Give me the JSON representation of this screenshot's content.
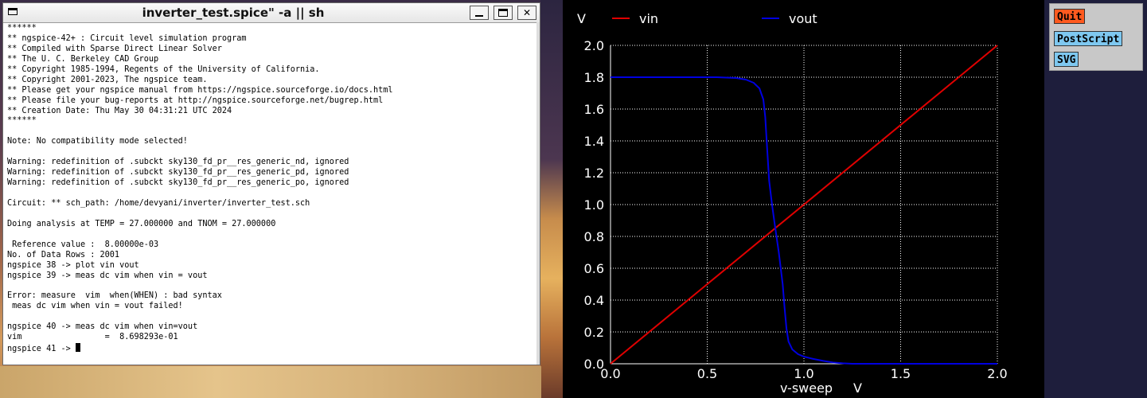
{
  "terminal": {
    "title": "inverter_test.spice\" -a || sh",
    "lines": [
      "******",
      "** ngspice-42+ : Circuit level simulation program",
      "** Compiled with Sparse Direct Linear Solver",
      "** The U. C. Berkeley CAD Group",
      "** Copyright 1985-1994, Regents of the University of California.",
      "** Copyright 2001-2023, The ngspice team.",
      "** Please get your ngspice manual from https://ngspice.sourceforge.io/docs.html",
      "** Please file your bug-reports at http://ngspice.sourceforge.net/bugrep.html",
      "** Creation Date: Thu May 30 04:31:21 UTC 2024",
      "******",
      "",
      "Note: No compatibility mode selected!",
      "",
      "Warning: redefinition of .subckt sky130_fd_pr__res_generic_nd, ignored",
      "Warning: redefinition of .subckt sky130_fd_pr__res_generic_pd, ignored",
      "Warning: redefinition of .subckt sky130_fd_pr__res_generic_po, ignored",
      "",
      "Circuit: ** sch_path: /home/devyani/inverter/inverter_test.sch",
      "",
      "Doing analysis at TEMP = 27.000000 and TNOM = 27.000000",
      "",
      " Reference value :  8.00000e-03",
      "No. of Data Rows : 2001",
      "ngspice 38 -> plot vin vout",
      "ngspice 39 -> meas dc vim when vin = vout",
      "",
      "Error: measure  vim  when(WHEN) : bad syntax",
      " meas dc vim when vin = vout failed!",
      "",
      "ngspice 40 -> meas dc vim when vin=vout",
      "vim                 =  8.698293e-01",
      "ngspice 41 -> "
    ]
  },
  "buttons": {
    "quit": "Quit",
    "postscript": "PostScript",
    "svg": "SVG"
  },
  "chart_data": {
    "type": "line",
    "title": "",
    "xlabel": "v-sweep",
    "xunit": "V",
    "yunit": "V",
    "xlim": [
      0.0,
      2.0
    ],
    "ylim": [
      0.0,
      2.0
    ],
    "xticks": [
      "0.0",
      "0.5",
      "1.0",
      "1.5",
      "2.0"
    ],
    "yticks": [
      "0.0",
      "0.2",
      "0.4",
      "0.6",
      "0.8",
      "1.0",
      "1.2",
      "1.4",
      "1.6",
      "1.8",
      "2.0"
    ],
    "grid": true,
    "legend_placement": "top",
    "series": [
      {
        "name": "vin",
        "color": "#e00000",
        "points": [
          [
            0.0,
            0.0
          ],
          [
            2.0,
            2.0
          ]
        ]
      },
      {
        "name": "vout",
        "color": "#0000e0",
        "points": [
          [
            0.0,
            1.8
          ],
          [
            0.55,
            1.8
          ],
          [
            0.65,
            1.795
          ],
          [
            0.7,
            1.785
          ],
          [
            0.74,
            1.765
          ],
          [
            0.77,
            1.73
          ],
          [
            0.79,
            1.66
          ],
          [
            0.8,
            1.55
          ],
          [
            0.81,
            1.35
          ],
          [
            0.82,
            1.15
          ],
          [
            0.835,
            1.0
          ],
          [
            0.85,
            0.87
          ],
          [
            0.87,
            0.7
          ],
          [
            0.89,
            0.5
          ],
          [
            0.9,
            0.35
          ],
          [
            0.91,
            0.22
          ],
          [
            0.92,
            0.14
          ],
          [
            0.94,
            0.09
          ],
          [
            0.97,
            0.06
          ],
          [
            1.0,
            0.045
          ],
          [
            1.05,
            0.03
          ],
          [
            1.1,
            0.018
          ],
          [
            1.15,
            0.008
          ],
          [
            1.2,
            0.003
          ],
          [
            1.25,
            0.0
          ],
          [
            2.0,
            0.0
          ]
        ]
      }
    ]
  }
}
